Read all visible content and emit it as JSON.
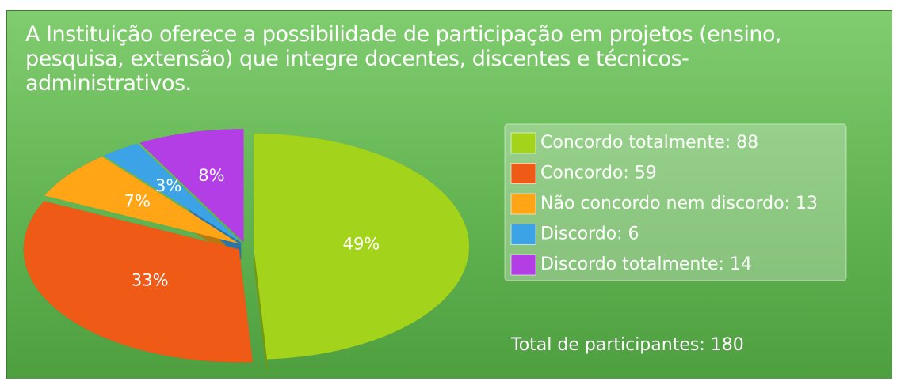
{
  "chart_data": {
    "type": "pie",
    "title": "A Instituição oferece a possibilidade de participação em projetos (ensino, pesquisa, extensão) que integre docentes, discentes e técnicos-administrativos.",
    "categories": [
      "Concordo totalmente: 88",
      "Concordo: 59",
      "Não concordo nem discordo: 13",
      "Discordo: 6",
      "Discordo totalmente: 14"
    ],
    "values": [
      49,
      33,
      7,
      3,
      8
    ],
    "value_labels": [
      "49%",
      "33%",
      "7%",
      "3%",
      "8%"
    ],
    "colors": [
      "#a3d41b",
      "#ef5a17",
      "#ffa516",
      "#3ca4e6",
      "#b43ee6"
    ],
    "annotation": "Total de participantes: 180"
  }
}
